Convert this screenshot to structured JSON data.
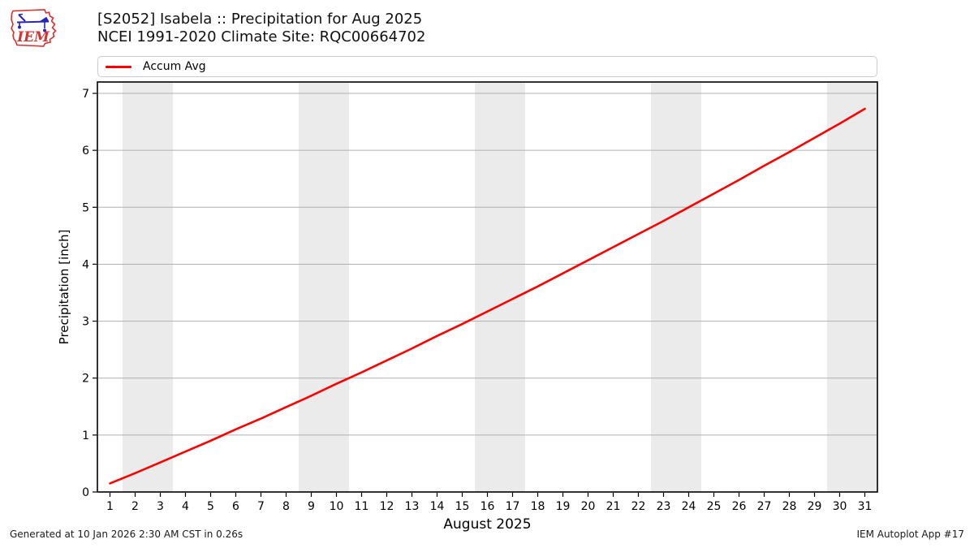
{
  "header": {
    "title_line1": "[S2052] Isabela :: Precipitation for Aug 2025",
    "title_line2": "NCEI 1991-2020 Climate Site: RQC00664702",
    "logo_text": "IEM"
  },
  "legend": {
    "items": [
      {
        "label": "Accum Avg",
        "color": "#ff0000"
      }
    ]
  },
  "footer": {
    "left": "Generated at 10 Jan 2026 2:30 AM CST in 0.26s",
    "right": "IEM Autoplot App #17"
  },
  "chart_data": {
    "type": "line",
    "title": "[S2052] Isabela :: Precipitation for Aug 2025",
    "subtitle": "NCEI 1991-2020 Climate Site: RQC00664702",
    "xlabel": "August 2025",
    "ylabel": "Precipitation [inch]",
    "legend_position": "top",
    "grid": "horizontal",
    "grid_color": "#b0b0b0",
    "band_color": "#ebebeb",
    "frame_color": "#000000",
    "xlim": [
      0.5,
      31.5
    ],
    "ylim": [
      0,
      7.2
    ],
    "xticks": [
      1,
      2,
      3,
      4,
      5,
      6,
      7,
      8,
      9,
      10,
      11,
      12,
      13,
      14,
      15,
      16,
      17,
      18,
      19,
      20,
      21,
      22,
      23,
      24,
      25,
      26,
      27,
      28,
      29,
      30,
      31
    ],
    "yticks": [
      0,
      1,
      2,
      3,
      4,
      5,
      6,
      7
    ],
    "weekend_bands": [
      [
        1.5,
        3.5
      ],
      [
        8.5,
        10.5
      ],
      [
        15.5,
        17.5
      ],
      [
        22.5,
        24.5
      ],
      [
        29.5,
        31.5
      ]
    ],
    "x": [
      1,
      2,
      3,
      4,
      5,
      6,
      7,
      8,
      9,
      10,
      11,
      12,
      13,
      14,
      15,
      16,
      17,
      18,
      19,
      20,
      21,
      22,
      23,
      24,
      25,
      26,
      27,
      28,
      29,
      30,
      31
    ],
    "series": [
      {
        "name": "Accum Avg",
        "color": "#ff0000",
        "values": [
          0.15,
          0.33,
          0.52,
          0.71,
          0.9,
          1.1,
          1.29,
          1.49,
          1.69,
          1.9,
          2.1,
          2.31,
          2.52,
          2.74,
          2.95,
          3.17,
          3.39,
          3.61,
          3.84,
          4.07,
          4.3,
          4.53,
          4.76,
          5.0,
          5.24,
          5.48,
          5.73,
          5.97,
          6.22,
          6.47,
          6.73
        ]
      }
    ]
  }
}
